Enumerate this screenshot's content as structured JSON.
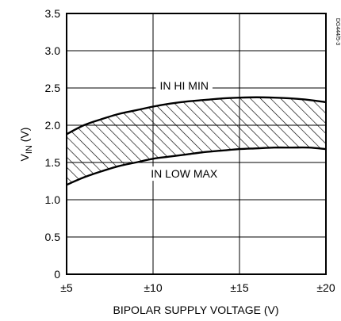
{
  "chart_data": {
    "type": "area",
    "xlabel": "BIPOLAR SUPPLY VOLTAGE (V)",
    "ylabel_main": "V",
    "ylabel_sub": "IN",
    "ylabel_unit": " (V)",
    "x_ticks": [
      {
        "value": 5,
        "label": "±5"
      },
      {
        "value": 10,
        "label": "±10"
      },
      {
        "value": 15,
        "label": "±15"
      },
      {
        "value": 20,
        "label": "±20"
      }
    ],
    "y_ticks": [
      {
        "value": 0,
        "label": "0"
      },
      {
        "value": 0.5,
        "label": "0.5"
      },
      {
        "value": 1.0,
        "label": "1.0"
      },
      {
        "value": 1.5,
        "label": "1.5"
      },
      {
        "value": 2.0,
        "label": "2.0"
      },
      {
        "value": 2.5,
        "label": "2.5"
      },
      {
        "value": 3.0,
        "label": "3.0"
      },
      {
        "value": 3.5,
        "label": "3.5"
      }
    ],
    "xlim": [
      5,
      20
    ],
    "ylim": [
      0,
      3.5
    ],
    "grid": true,
    "series": [
      {
        "name": "IN HI MIN",
        "x": [
          5,
          6,
          7,
          8,
          9,
          10,
          11,
          12,
          13,
          14,
          15,
          16,
          17,
          18,
          19,
          20
        ],
        "values": [
          1.88,
          2.0,
          2.08,
          2.15,
          2.2,
          2.25,
          2.29,
          2.32,
          2.34,
          2.36,
          2.37,
          2.375,
          2.37,
          2.36,
          2.34,
          2.31
        ]
      },
      {
        "name": "IN LOW MAX",
        "x": [
          5,
          6,
          7,
          8,
          9,
          10,
          11,
          12,
          13,
          14,
          15,
          16,
          17,
          18,
          19,
          20
        ],
        "values": [
          1.2,
          1.3,
          1.38,
          1.45,
          1.5,
          1.55,
          1.58,
          1.61,
          1.64,
          1.66,
          1.68,
          1.69,
          1.7,
          1.7,
          1.7,
          1.68
        ]
      }
    ],
    "annotations": [
      {
        "text": "IN HI MIN",
        "x": 11.8,
        "y": 2.53
      },
      {
        "text": "IN LOW MAX",
        "x": 11.8,
        "y": 1.35
      }
    ],
    "side_tag": "DG444/5-3"
  }
}
